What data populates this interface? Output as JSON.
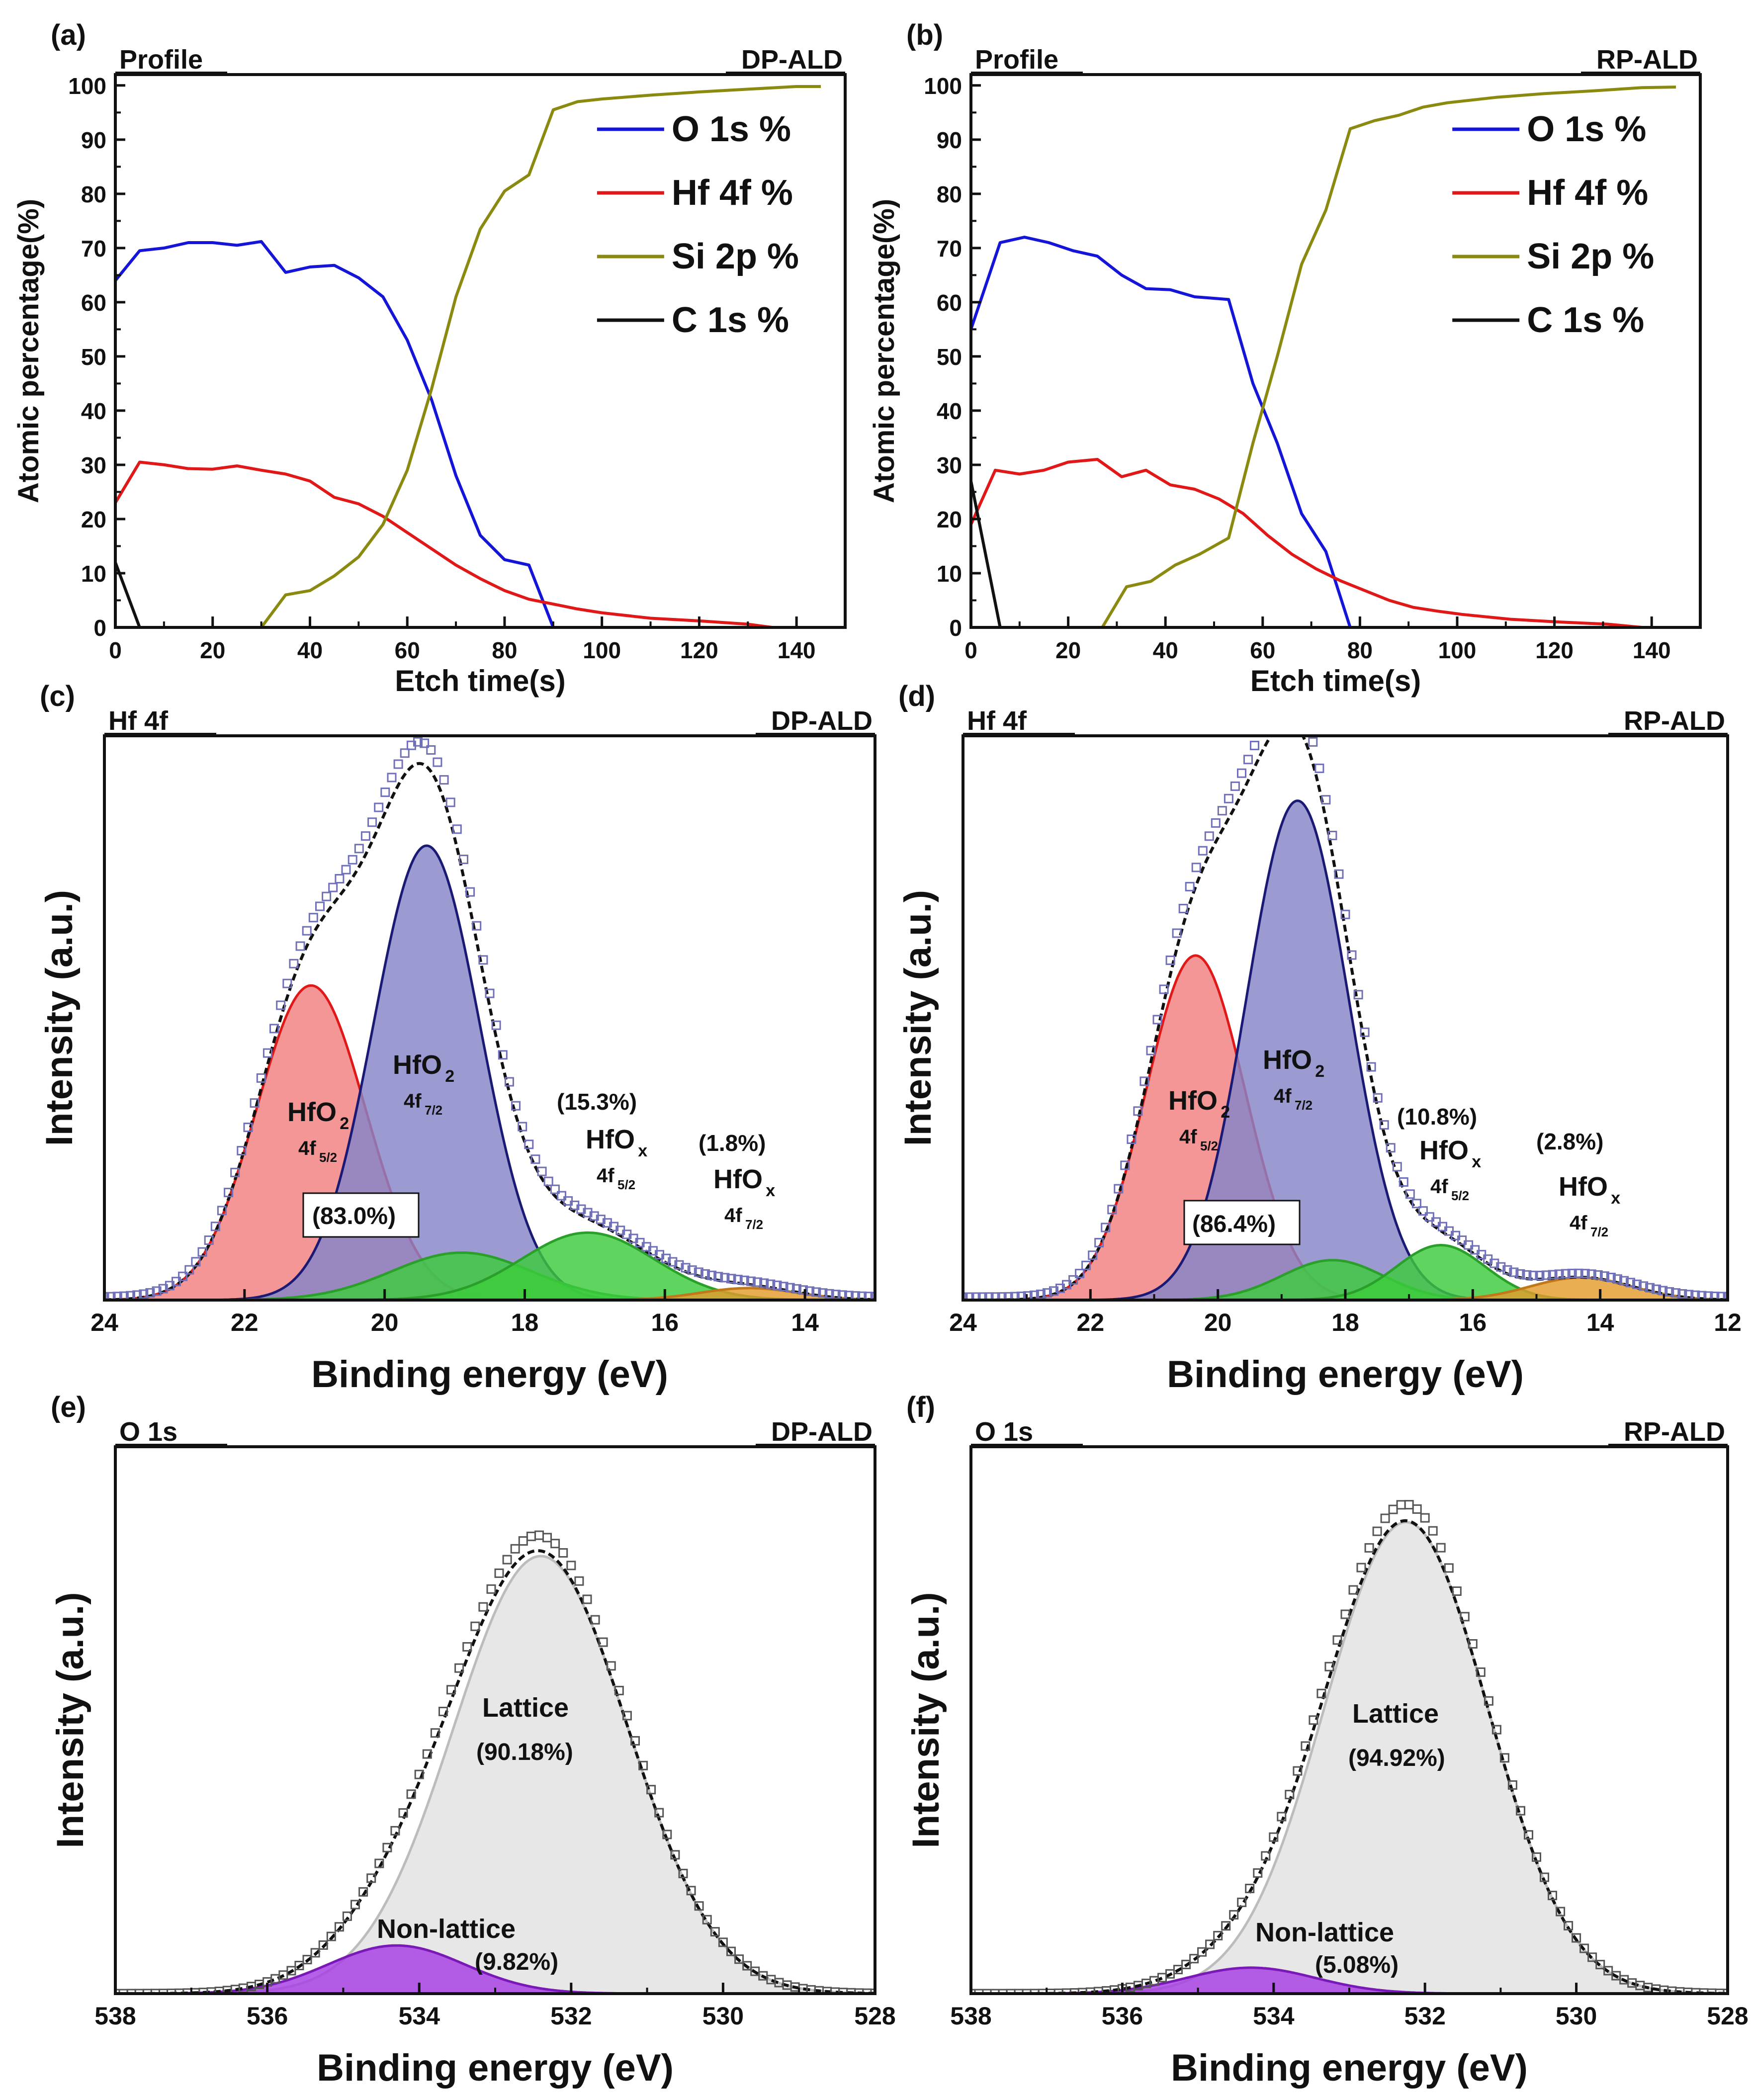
{
  "chart_data": [
    {
      "id": "a",
      "type": "line",
      "panel_label": "(a)",
      "corner_left": "Profile",
      "corner_right": "DP-ALD",
      "xlabel": "Etch time(s)",
      "ylabel": "Atomic percentage(%)",
      "xlim": [
        0,
        150
      ],
      "ylim": [
        0,
        102
      ],
      "xticks": [
        0,
        20,
        40,
        60,
        80,
        100,
        120,
        140
      ],
      "yticks": [
        0,
        10,
        20,
        30,
        40,
        50,
        60,
        70,
        80,
        90,
        100
      ],
      "legend": "top-right",
      "series": [
        {
          "name": "O 1s %",
          "color": "#1515d8",
          "x": [
            0,
            5,
            10,
            15,
            20,
            25,
            30,
            35,
            40,
            45,
            50,
            55,
            60,
            65,
            70,
            75,
            80,
            85,
            90
          ],
          "y": [
            64,
            69.5,
            70,
            71,
            71,
            70.5,
            71.2,
            65.5,
            66.5,
            66.8,
            64.5,
            61,
            53,
            42,
            28,
            17,
            12.5,
            11.5,
            0
          ]
        },
        {
          "name": "Hf 4f %",
          "color": "#e01818",
          "x": [
            0,
            5,
            10,
            15,
            20,
            25,
            30,
            35,
            40,
            45,
            50,
            55,
            60,
            65,
            70,
            75,
            80,
            85,
            90,
            95,
            100,
            110,
            120,
            130,
            135
          ],
          "y": [
            23,
            30.5,
            30,
            29.3,
            29.2,
            29.8,
            29,
            28.3,
            27,
            24,
            22.8,
            20.5,
            17.5,
            14.5,
            11.5,
            9,
            6.8,
            5.2,
            4.3,
            3.4,
            2.7,
            1.7,
            1.2,
            0.6,
            0
          ]
        },
        {
          "name": "Si 2p %",
          "color": "#8a8a10",
          "x": [
            0,
            30,
            35,
            40,
            45,
            50,
            55,
            60,
            65,
            70,
            75,
            80,
            85,
            90,
            95,
            100,
            110,
            120,
            130,
            140,
            145
          ],
          "y": [
            0,
            0,
            6,
            6.8,
            9.5,
            13,
            19,
            29,
            44,
            61,
            73.5,
            80.5,
            83.5,
            95.5,
            97,
            97.5,
            98.2,
            98.8,
            99.3,
            99.8,
            99.8
          ]
        },
        {
          "name": "C 1s %",
          "color": "#111111",
          "x": [
            0,
            5,
            145
          ],
          "y": [
            12,
            0,
            0
          ]
        }
      ]
    },
    {
      "id": "b",
      "type": "line",
      "panel_label": "(b)",
      "corner_left": "Profile",
      "corner_right": "RP-ALD",
      "xlabel": "Etch time(s)",
      "ylabel": "Atomic percentage(%)",
      "xlim": [
        0,
        150
      ],
      "ylim": [
        0,
        102
      ],
      "xticks": [
        0,
        20,
        40,
        60,
        80,
        100,
        120,
        140
      ],
      "yticks": [
        0,
        10,
        20,
        30,
        40,
        50,
        60,
        70,
        80,
        90,
        100
      ],
      "legend": "top-right",
      "series": [
        {
          "name": "O 1s %",
          "color": "#1515d8",
          "x": [
            0,
            6,
            11,
            16,
            21,
            26,
            31,
            36,
            41,
            46,
            53,
            58,
            63,
            68,
            73,
            78
          ],
          "y": [
            55,
            71,
            72,
            71,
            69.5,
            68.5,
            65,
            62.5,
            62.3,
            61,
            60.5,
            45,
            34,
            21,
            14,
            0
          ]
        },
        {
          "name": "Hf 4f %",
          "color": "#e01818",
          "x": [
            0,
            5,
            10,
            15,
            20,
            26,
            31,
            36,
            41,
            46,
            51,
            56,
            61,
            66,
            71,
            76,
            81,
            86,
            91,
            96,
            101,
            111,
            121,
            131,
            138
          ],
          "y": [
            19,
            29,
            28.3,
            29,
            30.5,
            31,
            27.8,
            29,
            26.3,
            25.5,
            23.7,
            21,
            17,
            13.5,
            10.8,
            8.6,
            6.8,
            5,
            3.7,
            3,
            2.4,
            1.5,
            1,
            0.6,
            0
          ]
        },
        {
          "name": "Si 2p %",
          "color": "#8a8a10",
          "x": [
            0,
            27,
            32,
            37,
            42,
            47,
            53,
            58,
            63,
            68,
            73,
            78,
            83,
            88,
            93,
            98,
            108,
            118,
            128,
            138,
            145
          ],
          "y": [
            0,
            0,
            7.5,
            8.5,
            11.5,
            13.5,
            16.5,
            34,
            50,
            67,
            77,
            92,
            93.5,
            94.5,
            96,
            96.8,
            97.8,
            98.5,
            99,
            99.6,
            99.7
          ]
        },
        {
          "name": "C 1s %",
          "color": "#111111",
          "x": [
            0,
            6,
            145
          ],
          "y": [
            27,
            0,
            0
          ]
        }
      ]
    },
    {
      "id": "c",
      "type": "area",
      "panel_label": "(c)",
      "corner_left": "Hf 4f",
      "corner_right": "DP-ALD",
      "xlabel": "Binding energy (eV)",
      "ylabel": "Intensity (a.u.)",
      "xlim": [
        24,
        13
      ],
      "ylim": [
        0,
        1.13
      ],
      "xticks": [
        24,
        22,
        20,
        18,
        16,
        14
      ],
      "peaks": [
        {
          "name": "HfO2 4f5/2",
          "center": 21.05,
          "height": 0.63,
          "sigma": 0.78,
          "fill": "#f27f7f",
          "stroke": "#e01818"
        },
        {
          "name": "HfO2 4f7/2",
          "center": 19.4,
          "height": 0.91,
          "sigma": 0.76,
          "fill": "#8585c8",
          "stroke": "#1a1a75"
        },
        {
          "name": "HfOx 4f5/2 a",
          "center": 18.9,
          "height": 0.095,
          "sigma": 1.0,
          "fill": "#3ccc3c",
          "stroke": "#2aa02a"
        },
        {
          "name": "HfOx 4f5/2 b",
          "center": 17.1,
          "height": 0.135,
          "sigma": 0.95,
          "fill": "#3ccc3c",
          "stroke": "#2aa02a"
        },
        {
          "name": "HfOx 4f7/2",
          "center": 14.8,
          "height": 0.024,
          "sigma": 0.7,
          "fill": "#e49b2c",
          "stroke": "#c07818"
        }
      ],
      "baseline_xfrom": 23.2,
      "labels": [
        {
          "text": "HfO",
          "sub": "2",
          "sub2": "4f",
          "sub2sub": "5/2",
          "bind": "c"
        },
        {
          "text": "HfO",
          "sub": "2",
          "sub2": "4f",
          "sub2sub": "7/2"
        },
        {
          "text": "(15.3%)"
        },
        {
          "text": "HfO",
          "sub": "x",
          "sub2": "4f",
          "sub2sub": "5/2"
        },
        {
          "text": "(1.8%)"
        },
        {
          "text": "HfO",
          "sub": "x",
          "sub2": "4f",
          "sub2sub": "7/2"
        },
        {
          "text": "(83.0%)"
        }
      ]
    },
    {
      "id": "d",
      "type": "area",
      "panel_label": "(d)",
      "corner_left": "Hf 4f",
      "corner_right": "RP-ALD",
      "xlabel": "Binding energy (eV)",
      "ylabel": "Intensity (a.u.)",
      "xlim": [
        24,
        12
      ],
      "ylim": [
        0,
        1.13
      ],
      "xticks": [
        24,
        22,
        20,
        18,
        16,
        14,
        12
      ],
      "peaks": [
        {
          "name": "HfO2 4f5/2",
          "center": 20.35,
          "height": 0.69,
          "sigma": 0.78,
          "fill": "#f27f7f",
          "stroke": "#e01818"
        },
        {
          "name": "HfO2 4f7/2",
          "center": 18.75,
          "height": 1.0,
          "sigma": 0.8,
          "fill": "#8585c8",
          "stroke": "#1a1a75"
        },
        {
          "name": "HfOx 4f5/2 a",
          "center": 18.2,
          "height": 0.08,
          "sigma": 0.8,
          "fill": "#3ccc3c",
          "stroke": "#2aa02a"
        },
        {
          "name": "HfOx 4f5/2 b",
          "center": 16.5,
          "height": 0.11,
          "sigma": 0.7,
          "fill": "#3ccc3c",
          "stroke": "#2aa02a"
        },
        {
          "name": "HfOx 4f7/2",
          "center": 14.3,
          "height": 0.045,
          "sigma": 0.8,
          "fill": "#e49b2c",
          "stroke": "#c07818"
        }
      ],
      "baseline_xfrom": 22.4,
      "labels": [
        {
          "text": "HfO",
          "sub": "2",
          "sub2": "4f",
          "sub2sub": "5/2"
        },
        {
          "text": "HfO",
          "sub": "2",
          "sub2": "4f",
          "sub2sub": "7/2"
        },
        {
          "text": "(10.8%)"
        },
        {
          "text": "HfO",
          "sub": "x",
          "sub2": "4f",
          "sub2sub": "5/2"
        },
        {
          "text": "(2.8%)"
        },
        {
          "text": "HfO",
          "sub": "x",
          "sub2": "4f",
          "sub2sub": "7/2"
        },
        {
          "text": "(86.4%)"
        }
      ]
    },
    {
      "id": "e",
      "type": "area",
      "panel_label": "(e)",
      "corner_left": "O 1s",
      "corner_right": "DP-ALD",
      "xlabel": "Binding energy (eV)",
      "ylabel": "Intensity (a.u.)",
      "xlim": [
        538,
        528
      ],
      "ylim": [
        0,
        1.25
      ],
      "xticks": [
        538,
        536,
        534,
        532,
        530,
        528
      ],
      "peaks": [
        {
          "name": "Lattice",
          "center": 532.4,
          "height": 1.0,
          "sigma": 1.15,
          "fill": "#e2e2e2",
          "stroke": "#bcbcbc"
        },
        {
          "name": "Non-lattice",
          "center": 534.3,
          "height": 0.11,
          "sigma": 0.9,
          "fill": "#a63ce4",
          "stroke": "#7a18b8"
        }
      ],
      "labels": [
        {
          "text": "Lattice"
        },
        {
          "text": "(90.18%)"
        },
        {
          "text": "Non-lattice"
        },
        {
          "text": "(9.82%)"
        }
      ]
    },
    {
      "id": "f",
      "type": "area",
      "panel_label": "(f)",
      "corner_left": "O 1s",
      "corner_right": "RP-ALD",
      "xlabel": "Binding energy (eV)",
      "ylabel": "Intensity (a.u.)",
      "xlim": [
        538,
        528
      ],
      "ylim": [
        0,
        1.16
      ],
      "xticks": [
        538,
        536,
        534,
        532,
        530,
        528
      ],
      "peaks": [
        {
          "name": "Lattice",
          "center": 532.25,
          "height": 1.0,
          "sigma": 1.08,
          "fill": "#e2e2e2",
          "stroke": "#bcbcbc"
        },
        {
          "name": "Non-lattice",
          "center": 534.3,
          "height": 0.055,
          "sigma": 0.85,
          "fill": "#a63ce4",
          "stroke": "#7a18b8"
        }
      ],
      "labels": [
        {
          "text": "Lattice"
        },
        {
          "text": "(94.92%)"
        },
        {
          "text": "Non-lattice"
        },
        {
          "text": "(5.08%)"
        }
      ]
    }
  ]
}
